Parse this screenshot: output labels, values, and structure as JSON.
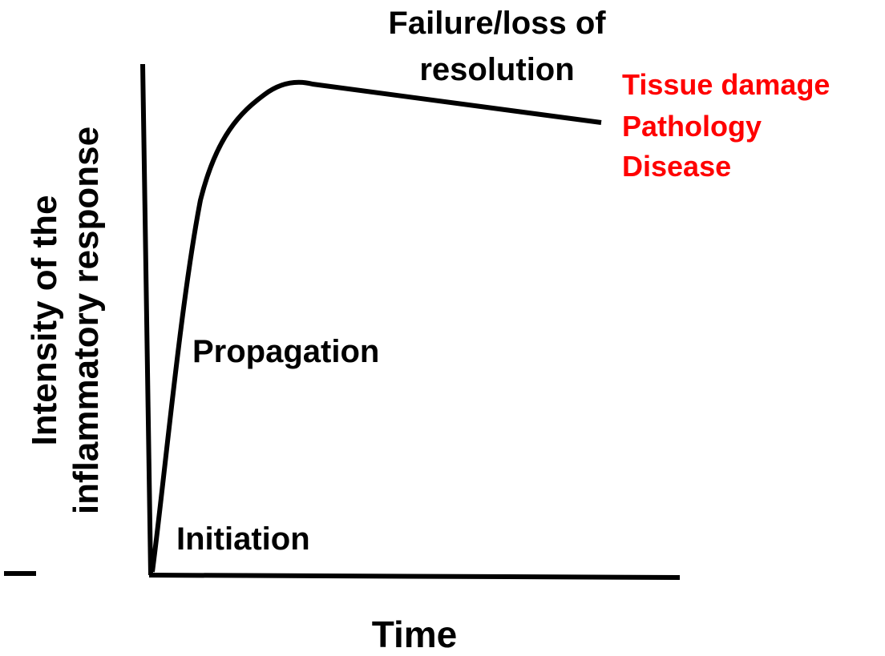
{
  "y_axis_label": [
    "Intensity of the",
    "inflammatory response"
  ],
  "x_axis_label": "Time",
  "phases": {
    "initiation": "Initiation",
    "propagation": "Propagation",
    "failure": [
      "Failure/loss of",
      "resolution"
    ]
  },
  "outcomes": [
    "Tissue damage",
    "Pathology",
    "Disease"
  ]
}
